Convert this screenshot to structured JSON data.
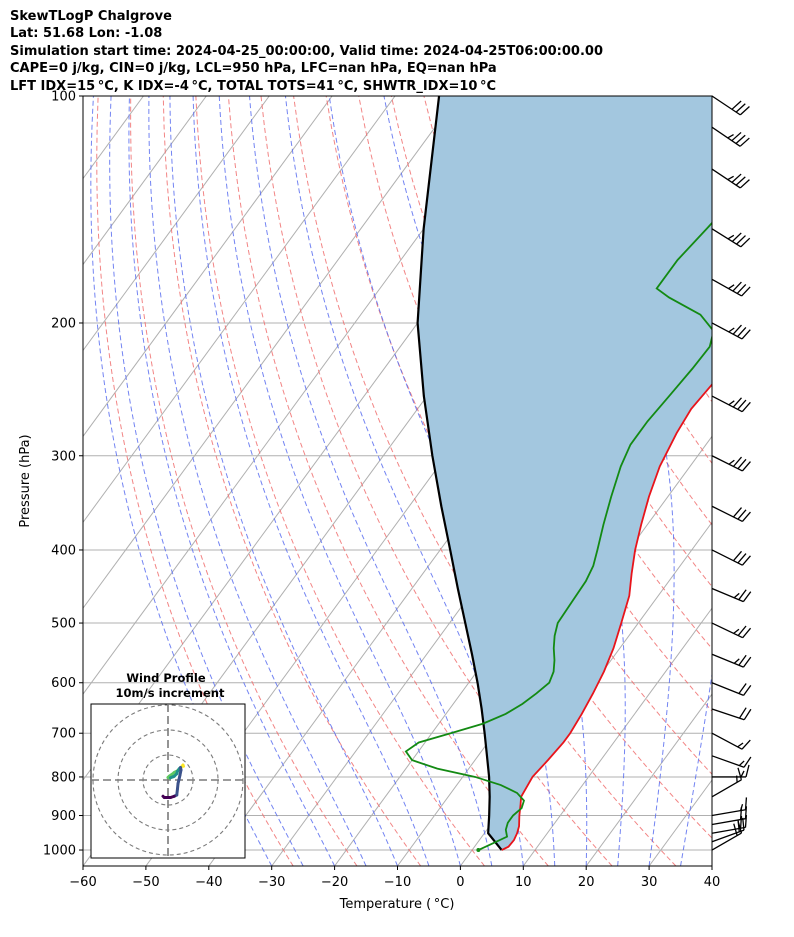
{
  "header": {
    "line1": "SkewTLogP Chalgrove",
    "line2": "Lat: 51.68   Lon: -1.08",
    "line3": "Simulation start time: 2024-04-25_00:00:00, Valid time: 2024-04-25T06:00:00.00",
    "line4": "CAPE=0 j/kg, CIN=0 j/kg, LCL=950 hPa, LFC=nan hPa, EQ=nan hPa",
    "line5": "LFT IDX=15 °C, K IDX=-4 °C, TOTAL TOTS=41 °C, SHWTR_IDX=10 °C"
  },
  "chart_data": {
    "type": "line",
    "chart_kind": "skew-t log-p",
    "xlabel": "Temperature ( °C)",
    "ylabel": "Pressure (hPa)",
    "xlim": [
      -60,
      40
    ],
    "ylim": [
      1050,
      100
    ],
    "y_scale": "log",
    "x_ticks": [
      "−60",
      "−50",
      "−40",
      "−30",
      "−20",
      "−10",
      "0",
      "10",
      "20",
      "30",
      "40"
    ],
    "y_ticks": [
      "100",
      "200",
      "300",
      "400",
      "500",
      "600",
      "700",
      "800",
      "900",
      "1000"
    ],
    "grid": true,
    "colors": {
      "temperature": "#e8141b",
      "dewpoint": "#138a13",
      "parcel": "#000000",
      "fill": "#a3c7df",
      "dry_adiabat": "#f07070",
      "moist_adiabat": "#5a6ff0",
      "isotherm": "#b0b0b0"
    },
    "series": [
      {
        "key": "temperature",
        "points": [
          [
            1000,
            4.7
          ],
          [
            990,
            5.4
          ],
          [
            970,
            5.5
          ],
          [
            950,
            5.2
          ],
          [
            930,
            4.7
          ],
          [
            900,
            3.5
          ],
          [
            870,
            2.4
          ],
          [
            850,
            1.6
          ],
          [
            820,
            1.3
          ],
          [
            800,
            1.1
          ],
          [
            760,
            1.6
          ],
          [
            720,
            2.0
          ],
          [
            700,
            2.0
          ],
          [
            660,
            1.6
          ],
          [
            620,
            1.0
          ],
          [
            580,
            0.2
          ],
          [
            540,
            -1.0
          ],
          [
            500,
            -2.7
          ],
          [
            460,
            -4.6
          ],
          [
            430,
            -6.8
          ],
          [
            400,
            -9.0
          ],
          [
            370,
            -11.0
          ],
          [
            340,
            -13.0
          ],
          [
            310,
            -14.8
          ],
          [
            280,
            -16.0
          ],
          [
            260,
            -16.5
          ],
          [
            240,
            -16.0
          ],
          [
            225,
            -14.5
          ],
          [
            210,
            -12.0
          ],
          [
            195,
            -8.0
          ],
          [
            180,
            -5.0
          ],
          [
            165,
            -2.5
          ],
          [
            150,
            0.0
          ],
          [
            135,
            2.5
          ],
          [
            120,
            5.0
          ],
          [
            110,
            7.0
          ],
          [
            100,
            9.0
          ]
        ]
      },
      {
        "key": "dewpoint",
        "points": [
          [
            1000,
            1.0
          ],
          [
            980,
            2.5
          ],
          [
            960,
            4.0
          ],
          [
            940,
            3.0
          ],
          [
            920,
            2.5
          ],
          [
            900,
            2.5
          ],
          [
            880,
            3.0
          ],
          [
            860,
            2.5
          ],
          [
            840,
            0.5
          ],
          [
            820,
            -3.0
          ],
          [
            800,
            -8.0
          ],
          [
            780,
            -15.0
          ],
          [
            760,
            -20.0
          ],
          [
            740,
            -22.0
          ],
          [
            720,
            -21.0
          ],
          [
            700,
            -17.0
          ],
          [
            680,
            -13.0
          ],
          [
            660,
            -10.5
          ],
          [
            640,
            -9.0
          ],
          [
            620,
            -8.0
          ],
          [
            600,
            -7.2
          ],
          [
            580,
            -7.8
          ],
          [
            560,
            -9.0
          ],
          [
            540,
            -10.5
          ],
          [
            520,
            -11.8
          ],
          [
            500,
            -12.8
          ],
          [
            470,
            -13.0
          ],
          [
            440,
            -13.2
          ],
          [
            420,
            -13.8
          ],
          [
            400,
            -15.0
          ],
          [
            370,
            -17.0
          ],
          [
            340,
            -19.0
          ],
          [
            310,
            -21.0
          ],
          [
            290,
            -22.0
          ],
          [
            270,
            -22.0
          ],
          [
            250,
            -21.5
          ],
          [
            230,
            -21.0
          ],
          [
            215,
            -20.8
          ],
          [
            205,
            -22.0
          ],
          [
            195,
            -26.0
          ],
          [
            185,
            -33.0
          ],
          [
            180,
            -36.0
          ],
          [
            165,
            -36.0
          ],
          [
            150,
            -35.0
          ],
          [
            135,
            -34.0
          ],
          [
            120,
            -33.0
          ],
          [
            110,
            -32.0
          ],
          [
            100,
            -31.0
          ]
        ]
      },
      {
        "key": "parcel",
        "points": [
          [
            1000,
            4.7
          ],
          [
            950,
            0.6
          ],
          [
            900,
            -1.3
          ],
          [
            850,
            -3.4
          ],
          [
            800,
            -5.8
          ],
          [
            750,
            -8.6
          ],
          [
            700,
            -11.6
          ],
          [
            650,
            -14.9
          ],
          [
            600,
            -18.6
          ],
          [
            550,
            -22.8
          ],
          [
            500,
            -27.5
          ],
          [
            450,
            -32.7
          ],
          [
            400,
            -38.4
          ],
          [
            350,
            -44.9
          ],
          [
            300,
            -52.2
          ],
          [
            250,
            -60.5
          ],
          [
            200,
            -70.0
          ],
          [
            150,
            -80.0
          ],
          [
            100,
            -93.0
          ]
        ]
      }
    ],
    "wind_profile": {
      "title": "Wind Profile",
      "subtitle": "10m/s increment",
      "rings_ms": [
        10,
        20,
        30
      ],
      "hodograph_uv": [
        [
          6.2,
          -5.5
        ],
        [
          6.0,
          -6.0
        ],
        [
          5.2,
          -5.0
        ],
        [
          4.5,
          -4.2
        ],
        [
          3.5,
          -3.5
        ],
        [
          2.5,
          -3.0
        ],
        [
          1.5,
          -2.2
        ],
        [
          0.5,
          -1.5
        ],
        [
          0.0,
          -1.0
        ],
        [
          0.5,
          -0.8
        ],
        [
          1.0,
          -0.9
        ],
        [
          1.8,
          -1.2
        ],
        [
          2.5,
          -1.5
        ],
        [
          3.5,
          -2.5
        ],
        [
          3.8,
          -3.5
        ],
        [
          4.5,
          -4.5
        ],
        [
          5.0,
          -5.0
        ],
        [
          5.2,
          -4.0
        ],
        [
          4.8,
          -2.0
        ],
        [
          4.0,
          1.5
        ],
        [
          3.8,
          3.5
        ],
        [
          3.5,
          6.0
        ],
        [
          2.5,
          6.5
        ],
        [
          1.0,
          7.0
        ],
        [
          -0.5,
          7.0
        ],
        [
          -1.5,
          7.0
        ],
        [
          -2.0,
          6.5
        ]
      ]
    },
    "wind_barbs": [
      {
        "p": 1000,
        "u": -8.7,
        "v": -5.0
      },
      {
        "p": 975,
        "u": -9.4,
        "v": -3.4
      },
      {
        "p": 950,
        "u": -9.8,
        "v": -1.7
      },
      {
        "p": 925,
        "u": -9.8,
        "v": -1.7
      },
      {
        "p": 900,
        "u": -8.7,
        "v": -1.5
      },
      {
        "p": 850,
        "u": -6.9,
        "v": -4.0
      },
      {
        "p": 800,
        "u": -7.0,
        "v": 0.0
      },
      {
        "p": 750,
        "u": -7.0,
        "v": 2.5
      },
      {
        "p": 700,
        "u": -7.5,
        "v": 4.0
      },
      {
        "p": 650,
        "u": -9.0,
        "v": 3.0
      },
      {
        "p": 600,
        "u": -10.0,
        "v": 4.0
      },
      {
        "p": 550,
        "u": -11.0,
        "v": 4.5
      },
      {
        "p": 500,
        "u": -11.5,
        "v": 5.5
      },
      {
        "p": 450,
        "u": -12.0,
        "v": 5.0
      },
      {
        "p": 400,
        "u": -13.0,
        "v": 6.5
      },
      {
        "p": 350,
        "u": -14.0,
        "v": 7.0
      },
      {
        "p": 300,
        "u": -15.0,
        "v": 7.5
      },
      {
        "p": 250,
        "u": -15.5,
        "v": 8.0
      },
      {
        "p": 200,
        "u": -16.0,
        "v": 8.5
      },
      {
        "p": 175,
        "u": -16.0,
        "v": 9.0
      },
      {
        "p": 150,
        "u": -16.0,
        "v": 10.0
      },
      {
        "p": 125,
        "u": -15.0,
        "v": 10.0
      },
      {
        "p": 110,
        "u": -14.0,
        "v": 9.5
      },
      {
        "p": 100,
        "u": -12.0,
        "v": 8.0
      }
    ]
  }
}
